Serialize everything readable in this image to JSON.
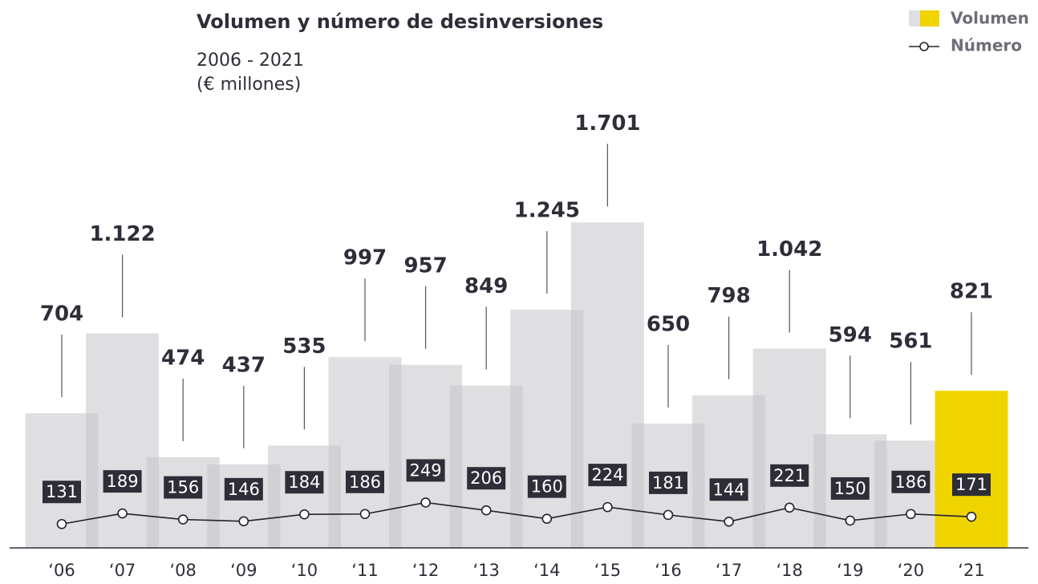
{
  "chart_data": {
    "type": "bar",
    "title": "Volumen y número de desinversiones",
    "subtitle": "2006 - 2021",
    "unit_label": "(€ millones)",
    "categories": [
      "‘06",
      "‘07",
      "‘08",
      "‘09",
      "‘10",
      "‘11",
      "‘12",
      "‘13",
      "‘14",
      "‘15",
      "‘16",
      "‘17",
      "‘18",
      "‘19",
      "‘20",
      "‘21"
    ],
    "series": [
      {
        "name": "Volumen",
        "type": "bar",
        "values": [
          704,
          1122,
          474,
          437,
          535,
          997,
          957,
          849,
          1245,
          1701,
          650,
          798,
          1042,
          594,
          561,
          821
        ],
        "value_labels": [
          "704",
          "1.122",
          "474",
          "437",
          "535",
          "997",
          "957",
          "849",
          "1.245",
          "1.701",
          "650",
          "798",
          "1.042",
          "594",
          "561",
          "821"
        ],
        "colors": [
          "#c4c4ca",
          "#c4c4ca",
          "#c4c4ca",
          "#c4c4ca",
          "#c4c4ca",
          "#c4c4ca",
          "#c4c4ca",
          "#c4c4ca",
          "#c4c4ca",
          "#c4c4ca",
          "#c4c4ca",
          "#c4c4ca",
          "#c4c4ca",
          "#c4c4ca",
          "#c4c4ca",
          "#efd400"
        ]
      },
      {
        "name": "Número",
        "type": "line",
        "axis": "y2",
        "color": "#22222c",
        "values": [
          131,
          189,
          156,
          146,
          184,
          186,
          249,
          206,
          160,
          224,
          181,
          144,
          221,
          150,
          186,
          171
        ]
      }
    ],
    "ylim": [
      0,
      2000
    ],
    "y2lim": [
      0,
      2100
    ],
    "legend": "top-right"
  }
}
